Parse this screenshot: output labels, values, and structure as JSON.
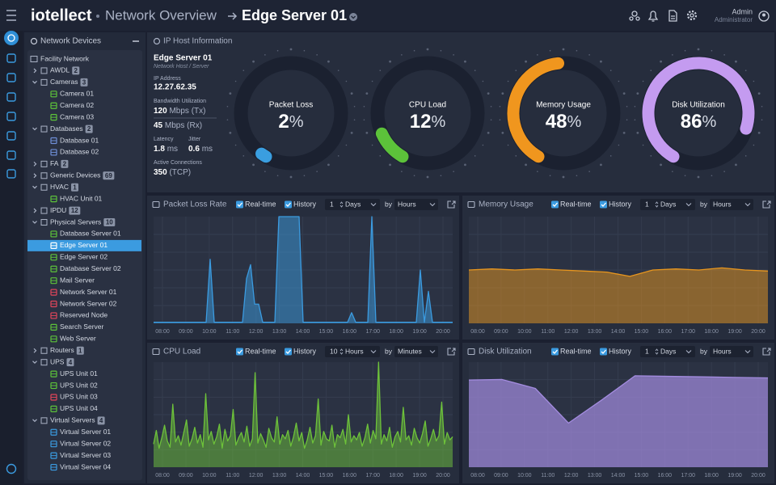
{
  "header": {
    "brand": "iotellect",
    "section": "Network Overview",
    "page": "Edge Server 01",
    "user": "Admin",
    "role": "Administrator"
  },
  "tree": {
    "title": "Network Devices",
    "nodes": [
      {
        "label": "Facility Network",
        "level": 0
      },
      {
        "label": "AWDL",
        "count": 2,
        "level": 1,
        "expanded": false
      },
      {
        "label": "Cameras",
        "count": 3,
        "level": 1,
        "expanded": true
      },
      {
        "label": "Camera 01",
        "level": 2,
        "color": "#5cc23a"
      },
      {
        "label": "Camera 02",
        "level": 2,
        "color": "#5cc23a"
      },
      {
        "label": "Camera 03",
        "level": 2,
        "color": "#5cc23a"
      },
      {
        "label": "Databases",
        "count": 2,
        "level": 1,
        "expanded": true
      },
      {
        "label": "Database 01",
        "level": 2,
        "color": "#6f8fd8"
      },
      {
        "label": "Database 02",
        "level": 2,
        "color": "#6f8fd8"
      },
      {
        "label": "FA",
        "count": 2,
        "level": 1,
        "expanded": false
      },
      {
        "label": "Generic Devices",
        "count": 69,
        "level": 1,
        "expanded": false
      },
      {
        "label": "HVAC",
        "count": 1,
        "level": 1,
        "expanded": true
      },
      {
        "label": "HVAC Unit 01",
        "level": 2,
        "color": "#5cc23a"
      },
      {
        "label": "IPDU",
        "count": 12,
        "level": 1,
        "expanded": false
      },
      {
        "label": "Physical Servers",
        "count": 10,
        "level": 1,
        "expanded": true
      },
      {
        "label": "Database Server 01",
        "level": 2,
        "color": "#5cc23a"
      },
      {
        "label": "Edge Server 01",
        "level": 2,
        "color": "#ffffff",
        "selected": true
      },
      {
        "label": "Edge Server 02",
        "level": 2,
        "color": "#5cc23a"
      },
      {
        "label": "Database Server 02",
        "level": 2,
        "color": "#5cc23a"
      },
      {
        "label": "Mail Server",
        "level": 2,
        "color": "#5cc23a"
      },
      {
        "label": "Network Server 01",
        "level": 2,
        "color": "#e0455a"
      },
      {
        "label": "Network Server 02",
        "level": 2,
        "color": "#e0455a"
      },
      {
        "label": "Reserved Node",
        "level": 2,
        "color": "#e0455a"
      },
      {
        "label": "Search Server",
        "level": 2,
        "color": "#5cc23a"
      },
      {
        "label": "Web Server",
        "level": 2,
        "color": "#5cc23a"
      },
      {
        "label": "Routers",
        "count": 1,
        "level": 1,
        "expanded": false
      },
      {
        "label": "UPS",
        "count": 4,
        "level": 1,
        "expanded": true
      },
      {
        "label": "UPS Unit 01",
        "level": 2,
        "color": "#5cc23a"
      },
      {
        "label": "UPS Unit 02",
        "level": 2,
        "color": "#5cc23a"
      },
      {
        "label": "UPS Unit 03",
        "level": 2,
        "color": "#e0455a"
      },
      {
        "label": "UPS Unit 04",
        "level": 2,
        "color": "#5cc23a"
      },
      {
        "label": "Virtual Servers",
        "count": 4,
        "level": 1,
        "expanded": true
      },
      {
        "label": "Virtual Server 01",
        "level": 2,
        "color": "#3b9be0"
      },
      {
        "label": "Virtual Server 02",
        "level": 2,
        "color": "#3b9be0"
      },
      {
        "label": "Virtual Server 03",
        "level": 2,
        "color": "#3b9be0"
      },
      {
        "label": "Virtual Server 04",
        "level": 2,
        "color": "#3b9be0"
      }
    ]
  },
  "host": {
    "title": "IP Host Information",
    "name": "Edge Server 01",
    "subtitle": "Network Host / Server",
    "ip_label": "IP Address",
    "ip": "12.27.62.35",
    "bandwidth_label": "Bandwidth Utilization",
    "tx": {
      "value": 120,
      "unit": "Mbps (Tx)"
    },
    "rx": {
      "value": 45,
      "unit": "Mbps (Rx)"
    },
    "latency": {
      "label": "Latency",
      "value": 1.8,
      "unit": "ms"
    },
    "jitter": {
      "label": "Jitter",
      "value": 0.6,
      "unit": "ms"
    },
    "connections": {
      "label": "Active Connections",
      "value": 350,
      "unit": "(TCP)"
    }
  },
  "gauge_range": [
    0,
    100
  ],
  "gauges": [
    {
      "label": "Packet Loss",
      "value": 2,
      "unit": "%",
      "color": "#3a9ee0"
    },
    {
      "label": "CPU Load",
      "value": 12,
      "unit": "%",
      "color": "#5cc23a"
    },
    {
      "label": "Memory Usage",
      "value": 48,
      "unit": "%",
      "color": "#f0961e"
    },
    {
      "label": "Disk Utilization",
      "value": 86,
      "unit": "%",
      "color": "#c49bf0"
    }
  ],
  "charts": [
    {
      "type": "area",
      "title": "Packet Loss Rate",
      "realtime": "Real-time",
      "history": "History",
      "period_count": 1,
      "period_unit": "Days",
      "by": "by",
      "interval": "Hours",
      "color": "#3b9be0",
      "ylim": [
        0,
        100
      ],
      "xticks": [
        "08:00",
        "09:00",
        "10:00",
        "11:00",
        "12:00",
        "13:00",
        "14:00",
        "15:00",
        "16:00",
        "17:00",
        "18:00",
        "19:00",
        "20:00"
      ],
      "values": [
        1,
        1,
        1,
        1,
        1,
        1,
        1,
        1,
        1,
        1,
        1,
        1,
        1,
        1,
        60,
        1,
        1,
        1,
        1,
        1,
        1,
        1,
        1,
        42,
        55,
        18,
        18,
        1,
        1,
        1,
        1,
        100,
        100,
        100,
        100,
        100,
        100,
        1,
        1,
        1,
        1,
        1,
        1,
        1,
        1,
        1,
        1,
        1,
        1,
        10,
        1,
        1,
        1,
        1,
        100,
        1,
        1,
        1,
        1,
        1,
        1,
        1,
        1,
        1,
        1,
        1,
        50,
        1,
        30,
        1,
        1,
        1,
        1,
        1,
        1
      ]
    },
    {
      "type": "area",
      "title": "Memory Usage",
      "realtime": "Real-time",
      "history": "History",
      "period_count": 1,
      "period_unit": "Days",
      "by": "by",
      "interval": "Hours",
      "color": "#e8961e",
      "ylim": [
        0,
        100
      ],
      "xticks": [
        "08:00",
        "09:00",
        "10:00",
        "11:00",
        "12:00",
        "13:00",
        "14:00",
        "15:00",
        "16:00",
        "17:00",
        "18:00",
        "19:00",
        "20:00"
      ],
      "values": [
        50,
        51,
        50,
        51,
        50,
        49,
        48,
        44,
        50,
        51,
        50,
        52,
        50,
        49
      ]
    },
    {
      "type": "area",
      "title": "CPU Load",
      "realtime": "Real-time",
      "history": "History",
      "period_count": 10,
      "period_unit": "Hours",
      "by": "by",
      "interval": "Minutes",
      "color": "#6dc23a",
      "ylim": [
        0,
        100
      ],
      "xticks": [
        "08:00",
        "09:00",
        "10:00",
        "11:00",
        "12:00",
        "13:00",
        "14:00",
        "15:00",
        "16:00",
        "17:00",
        "18:00",
        "19:00",
        "20:00"
      ],
      "values": [
        22,
        35,
        18,
        28,
        40,
        25,
        19,
        60,
        24,
        30,
        21,
        33,
        45,
        20,
        27,
        38,
        23,
        31,
        19,
        70,
        26,
        34,
        22,
        29,
        41,
        18,
        36,
        25,
        30,
        55,
        21,
        28,
        33,
        24,
        39,
        20,
        27,
        90,
        23,
        32,
        26,
        19,
        37,
        28,
        24,
        48,
        22,
        31,
        27,
        35,
        20,
        29,
        42,
        25,
        33,
        18,
        26,
        38,
        23,
        30,
        65,
        21,
        34,
        27,
        25,
        40,
        19,
        31,
        28,
        36,
        22,
        50,
        24,
        30,
        26,
        33,
        20,
        28,
        41,
        23,
        35,
        27,
        100,
        22,
        31,
        25,
        38,
        19,
        29,
        34,
        24,
        57,
        26,
        30,
        21,
        37,
        28,
        23,
        32,
        44,
        20,
        27,
        36,
        25,
        30,
        62,
        22,
        33,
        26,
        29
      ]
    },
    {
      "type": "area",
      "title": "Disk Utilization",
      "realtime": "Real-time",
      "history": "History",
      "period_count": 1,
      "period_unit": "Days",
      "by": "by",
      "interval": "Hours",
      "color": "#a48ce0",
      "ylim": [
        0,
        100
      ],
      "xticks": [
        "08:00",
        "09:00",
        "10:00",
        "11:00",
        "12:00",
        "13:00",
        "14:00",
        "15:00",
        "16:00",
        "17:00",
        "18:00",
        "19:00",
        "20:00"
      ],
      "values": [
        83,
        83.5,
        75,
        42,
        64,
        87,
        86.5,
        86,
        85.5,
        85
      ]
    }
  ]
}
